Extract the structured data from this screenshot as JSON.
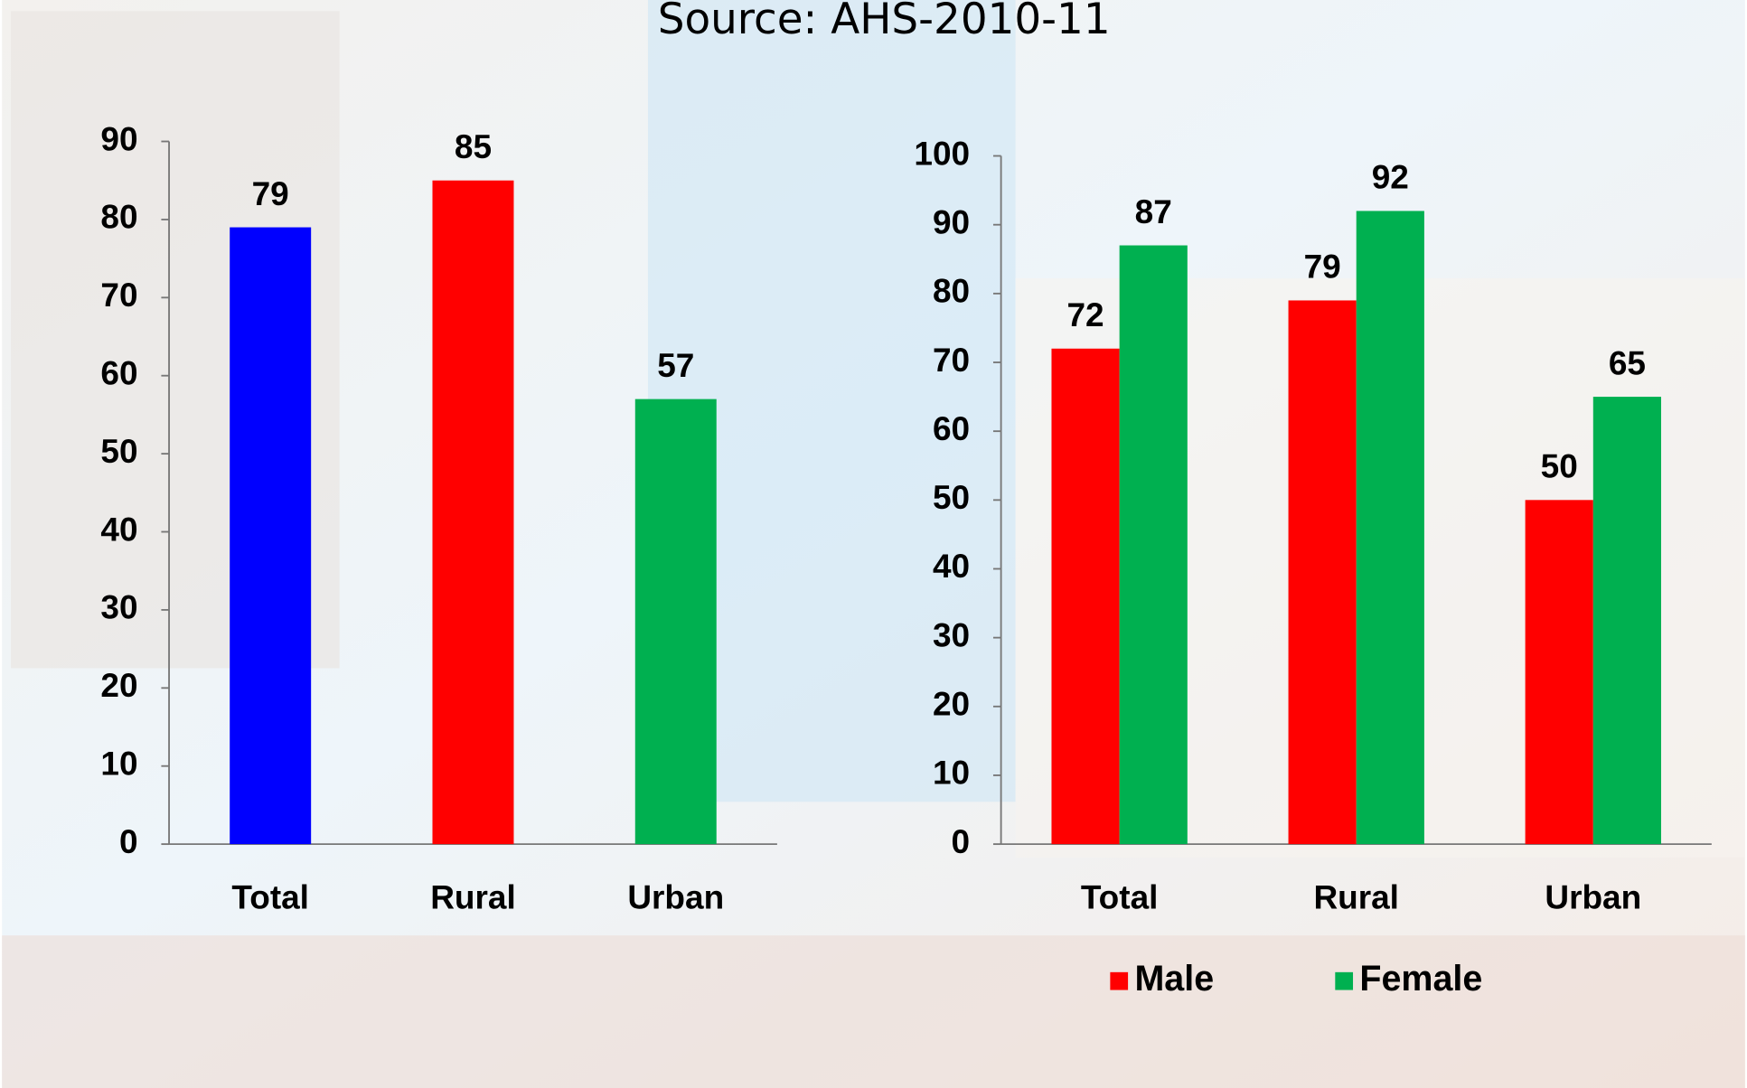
{
  "title": "Source: AHS-2010-11",
  "chart_data": [
    {
      "type": "bar",
      "categories": [
        "Total",
        "Rural",
        "Urban"
      ],
      "values": [
        79,
        85,
        57
      ],
      "colors": [
        "#0000ff",
        "#ff0000",
        "#00b050"
      ],
      "ylim": [
        0,
        90
      ],
      "yticks": [
        0,
        10,
        20,
        30,
        40,
        50,
        60,
        70,
        80,
        90
      ]
    },
    {
      "type": "bar",
      "categories": [
        "Total",
        "Rural",
        "Urban"
      ],
      "series": [
        {
          "name": "Male",
          "color": "#ff0000",
          "values": [
            72,
            79,
            50
          ]
        },
        {
          "name": "Female",
          "color": "#00b050",
          "values": [
            87,
            92,
            65
          ]
        }
      ],
      "ylim": [
        0,
        100
      ],
      "yticks": [
        0,
        10,
        20,
        30,
        40,
        50,
        60,
        70,
        80,
        90,
        100
      ],
      "legend": "bottom"
    }
  ]
}
